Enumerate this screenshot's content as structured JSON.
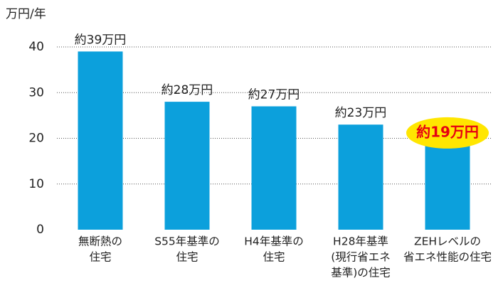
{
  "chart_data": {
    "type": "bar",
    "y_axis_label": "万円/年",
    "categories": [
      [
        "無断熱の",
        "住宅"
      ],
      [
        "S55年基準の",
        "住宅"
      ],
      [
        "H4年基準の",
        "住宅"
      ],
      [
        "H28年基準",
        "(現行省エネ",
        "基準)の住宅"
      ],
      [
        "ZEHレベルの",
        "省エネ性能の住宅"
      ]
    ],
    "values": [
      39,
      28,
      27,
      23,
      19
    ],
    "value_labels": [
      "約39万円",
      "約28万円",
      "約27万円",
      "約23万円",
      "約19万円"
    ],
    "color": "#0ca0dc",
    "ylim": [
      0,
      40
    ],
    "yticks": [
      0,
      10,
      20,
      30,
      40
    ],
    "grid": true,
    "highlight": {
      "index": 4,
      "color": "#e60012",
      "background": "#ffe600"
    }
  }
}
